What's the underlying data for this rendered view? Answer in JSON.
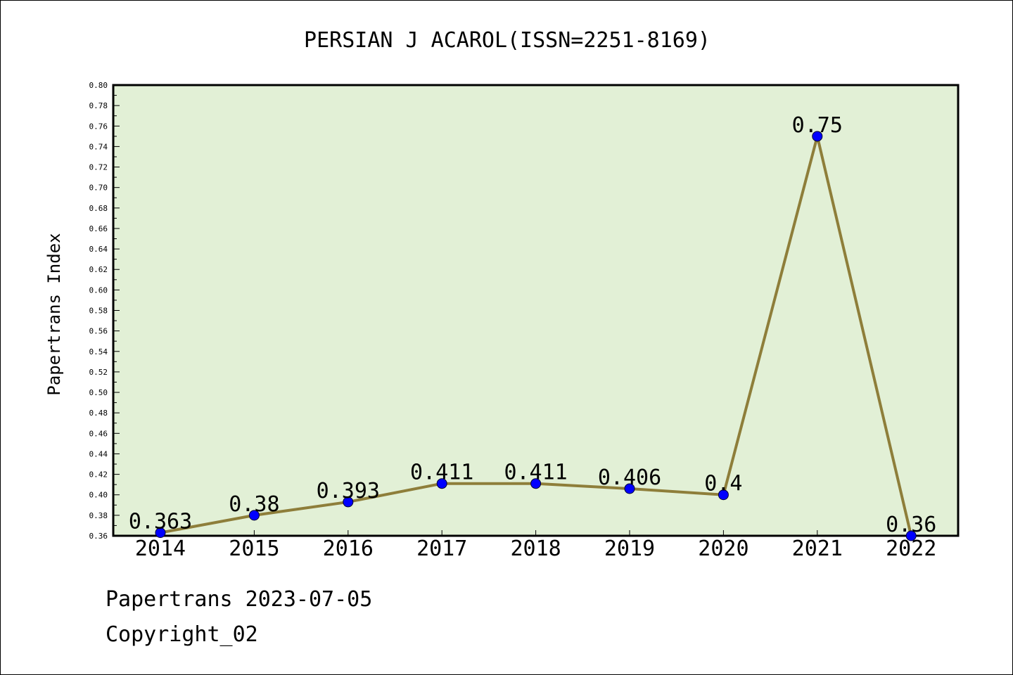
{
  "chart_data": {
    "type": "line",
    "title": "PERSIAN J ACAROL(ISSN=2251-8169)",
    "ylabel": "Papertrans Index",
    "xlabel": "",
    "categories": [
      "2014",
      "2015",
      "2016",
      "2017",
      "2018",
      "2019",
      "2020",
      "2021",
      "2022"
    ],
    "series": [
      {
        "values": [
          0.363,
          0.38,
          0.393,
          0.411,
          0.411,
          0.406,
          0.4,
          0.75,
          0.36
        ],
        "labels": [
          "0.363",
          "0.38",
          "0.393",
          "0.411",
          "0.411",
          "0.406",
          "0.4",
          "0.75",
          "0.36"
        ]
      }
    ],
    "ylim": [
      0.36,
      0.8
    ],
    "yticks": [
      "0.36",
      "0.38",
      "0.40",
      "0.42",
      "0.44",
      "0.46",
      "0.48",
      "0.50",
      "0.52",
      "0.54",
      "0.56",
      "0.58",
      "0.60",
      "0.62",
      "0.64",
      "0.66",
      "0.68",
      "0.70",
      "0.72",
      "0.74",
      "0.76",
      "0.78",
      "0.80"
    ],
    "grid": false,
    "colors": {
      "plot_bg": "#e2f0d6",
      "line": "#8e7e3a",
      "marker": "#0000ff"
    }
  },
  "footer": {
    "line1": "Papertrans 2023-07-05",
    "line2": "Copyright_02"
  }
}
